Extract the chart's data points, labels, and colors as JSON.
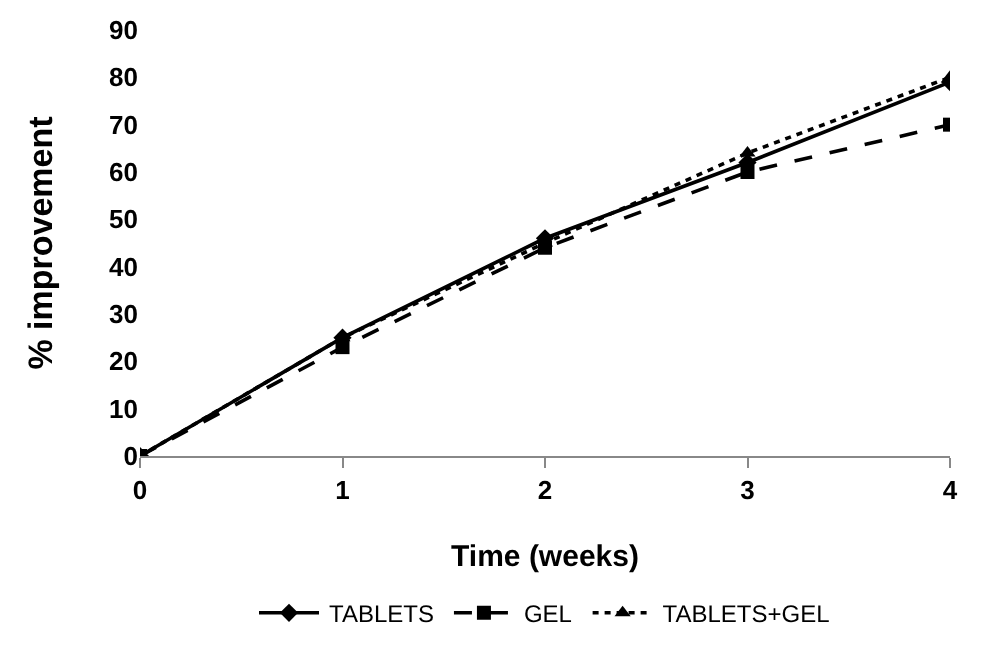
{
  "chart_data": {
    "type": "line",
    "xlabel": "Time (weeks)",
    "ylabel": "% improvement",
    "x": [
      0,
      1,
      2,
      3,
      4
    ],
    "xlim": [
      0,
      4
    ],
    "xticks": [
      0,
      1,
      2,
      3,
      4
    ],
    "ylim": [
      0,
      90
    ],
    "yticks": [
      0,
      10,
      20,
      30,
      40,
      50,
      60,
      70,
      80,
      90
    ],
    "grid": false,
    "legend": "bottom",
    "series": [
      {
        "name": "TABLETS",
        "color": "#000000",
        "values": [
          0,
          25,
          46,
          62,
          79
        ],
        "marker": "diamond",
        "line_style": "solid"
      },
      {
        "name": "GEL",
        "color": "#000000",
        "values": [
          0,
          23,
          44,
          60,
          70
        ],
        "marker": "square",
        "line_style": "dashed"
      },
      {
        "name": "TABLETS+GEL",
        "color": "#000000",
        "values": [
          0,
          25,
          45,
          64,
          80
        ],
        "marker": "triangle",
        "line_style": "dotted"
      }
    ]
  }
}
